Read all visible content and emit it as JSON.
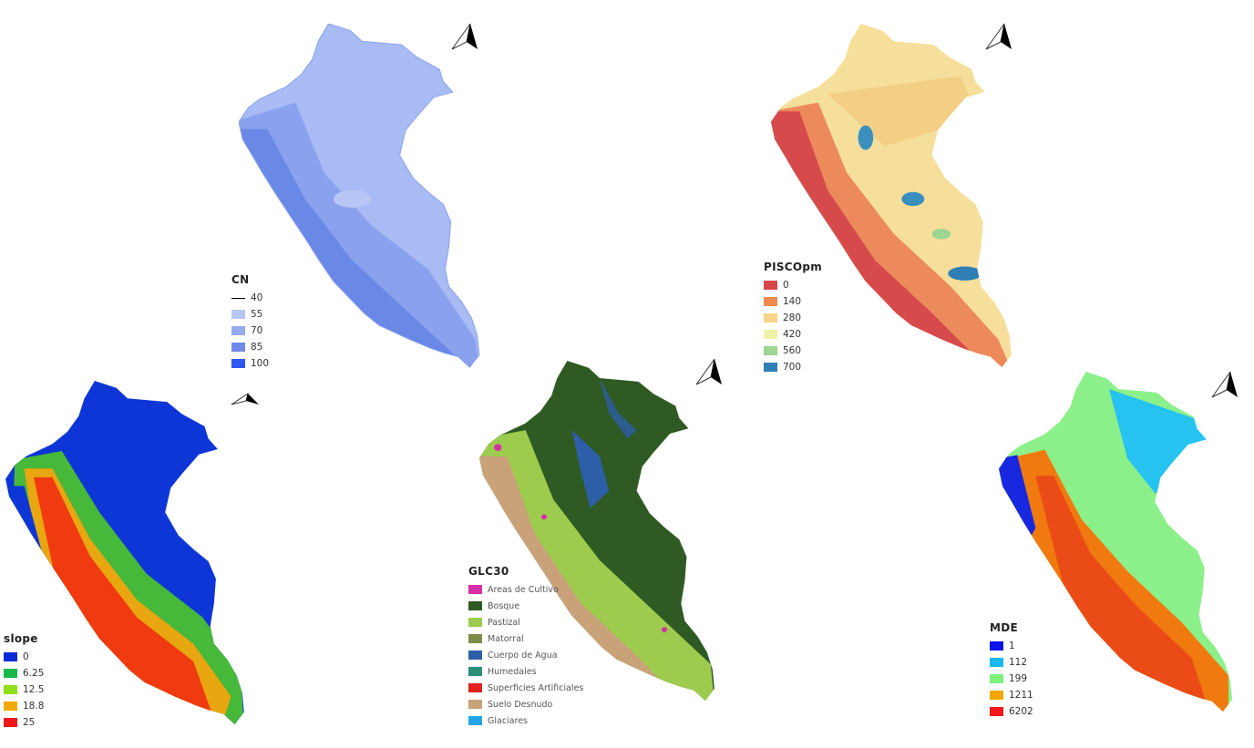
{
  "maps": {
    "cn": {
      "title": "CN",
      "items": [
        {
          "label": "40",
          "color": "#000000",
          "line": true
        },
        {
          "label": "55",
          "color": "#b8c6f6"
        },
        {
          "label": "70",
          "color": "#95a9f0"
        },
        {
          "label": "85",
          "color": "#6f8ae8"
        },
        {
          "label": "100",
          "color": "#3057f0"
        }
      ]
    },
    "pisco": {
      "title": "PISCOpm",
      "items": [
        {
          "label": "0",
          "color": "#d7464c"
        },
        {
          "label": "140",
          "color": "#f08a52"
        },
        {
          "label": "280",
          "color": "#f7d488"
        },
        {
          "label": "420",
          "color": "#eef2a6"
        },
        {
          "label": "560",
          "color": "#9ed592"
        },
        {
          "label": "700",
          "color": "#2f7fb4"
        }
      ]
    },
    "slope": {
      "title": "slope",
      "items": [
        {
          "label": "0",
          "color": "#0a2ad8"
        },
        {
          "label": "6.25",
          "color": "#17b84a"
        },
        {
          "label": "12.5",
          "color": "#8fe01a"
        },
        {
          "label": "18.8",
          "color": "#f2a900"
        },
        {
          "label": "25",
          "color": "#f01818"
        }
      ]
    },
    "glc30": {
      "title": "GLC30",
      "items": [
        {
          "label": "Areas de Cultivo",
          "color": "#d62fa8"
        },
        {
          "label": "Bosque",
          "color": "#2f5a23"
        },
        {
          "label": "Pastizal",
          "color": "#9ccb4d"
        },
        {
          "label": "Matorral",
          "color": "#7e8c49"
        },
        {
          "label": "Cuerpo de Agua",
          "color": "#2d5ea8"
        },
        {
          "label": "Humedales",
          "color": "#2e8f77"
        },
        {
          "label": "Superficies Artificiales",
          "color": "#e3211c"
        },
        {
          "label": "Suelo Desnudo",
          "color": "#c9a27a"
        },
        {
          "label": "Glaciares",
          "color": "#22a6e6"
        }
      ]
    },
    "mde": {
      "title": "MDE",
      "items": [
        {
          "label": "1",
          "color": "#0b12e8"
        },
        {
          "label": "112",
          "color": "#18b8f2"
        },
        {
          "label": "199",
          "color": "#7cf27c"
        },
        {
          "label": "1211",
          "color": "#f2a600"
        },
        {
          "label": "6202",
          "color": "#f01818"
        }
      ]
    }
  },
  "fills": {
    "cn": {
      "base": "#a9bbf4",
      "mid": "#8aa2ee",
      "dark": "#6a88e6"
    },
    "pisco": {
      "base": "#f2c67c",
      "mid": "#ec8a5c",
      "dark": "#d64a4c",
      "wet": "#3a8fbf",
      "light": "#f5df9a"
    },
    "slope": {
      "base": "#0e36d6",
      "mid": "#46b83a",
      "hot": "#f03a10",
      "warm": "#e8a610"
    },
    "glc30": {
      "base": "#2f5a23",
      "grass": "#9ccb4d",
      "soil": "#c9a27a",
      "water": "#2d5ea8",
      "crop": "#d62fa8"
    },
    "mde": {
      "base": "#8cf08a",
      "cyan": "#26c3f0",
      "high": "#f07a10",
      "peak": "#e8241c",
      "blue": "#1828e0"
    }
  }
}
